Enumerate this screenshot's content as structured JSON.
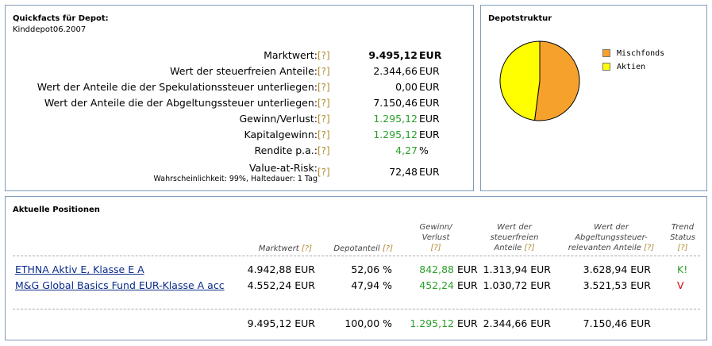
{
  "quickfacts": {
    "title": "Quickfacts für Depot:",
    "depot_name": "Kinddepot06.2007",
    "help": "[?]",
    "rows": [
      {
        "label": "Marktwert:",
        "value": "9.495,12",
        "unit": "EUR",
        "bold": true
      },
      {
        "label": "Wert der steuerfreien Anteile:",
        "value": "2.344,66",
        "unit": "EUR"
      },
      {
        "label": "Wert der Anteile die der Spekulationssteuer unterliegen:",
        "value": "0,00",
        "unit": "EUR"
      },
      {
        "label": "Wert der Anteile die der Abgeltungssteuer unterliegen:",
        "value": "7.150,46",
        "unit": "EUR"
      },
      {
        "label": "Gewinn/Verlust:",
        "value": "1.295,12",
        "unit": "EUR",
        "color": "green"
      },
      {
        "label": "Kapitalgewinn:",
        "value": "1.295,12",
        "unit": "EUR",
        "color": "green"
      },
      {
        "label": "Rendite p.a.:",
        "value": "4,27",
        "unit": "%",
        "color": "green"
      },
      {
        "label": "Value-at-Risk:",
        "sublabel": "Wahrscheinlichkeit: 99%, Haltedauer: 1 Tag",
        "value": "72,48",
        "unit": "EUR"
      }
    ]
  },
  "depotstruktur": {
    "title": "Depotstruktur",
    "legend": [
      {
        "name": "Mischfonds",
        "color": "#f7a12d"
      },
      {
        "name": "Aktien",
        "color": "#ffff00"
      }
    ]
  },
  "chart_data": {
    "type": "pie",
    "categories": [
      "Mischfonds",
      "Aktien"
    ],
    "values": [
      52.06,
      47.94
    ],
    "colors": [
      "#f7a12d",
      "#ffff00"
    ],
    "legend_position": "right"
  },
  "positions": {
    "title": "Aktuelle Positionen",
    "help": "[?]",
    "headers": {
      "marktwert": "Marktwert",
      "depotanteil": "Depotanteil",
      "gewinn_line1": "Gewinn/",
      "gewinn_line2": "Verlust",
      "steuerfrei_line1": "Wert der",
      "steuerfrei_line2": "steuerfreien",
      "steuerfrei_line3": "Anteile",
      "abgeltung_line1": "Wert der",
      "abgeltung_line2": "Abgeltungssteuer-",
      "abgeltung_line3": "relevanten Anteile",
      "trend_line1": "Trend",
      "trend_line2": "Status"
    },
    "rows": [
      {
        "name": "ETHNA Aktiv E, Klasse E A",
        "marktwert": "4.942,88 EUR",
        "depotanteil": "52,06 %",
        "gewinn": "842,88",
        "gewinn_unit": "EUR",
        "steuerfrei": "1.313,94 EUR",
        "abgeltung": "3.628,94 EUR",
        "trend": "K!",
        "trend_color": "green"
      },
      {
        "name": "M&G Global Basics Fund EUR-Klasse A acc",
        "marktwert": "4.552,24 EUR",
        "depotanteil": "47,94 %",
        "gewinn": "452,24",
        "gewinn_unit": "EUR",
        "steuerfrei": "1.030,72 EUR",
        "abgeltung": "3.521,53 EUR",
        "trend": "V",
        "trend_color": "red"
      }
    ],
    "totals": {
      "marktwert": "9.495,12 EUR",
      "depotanteil": "100,00 %",
      "gewinn": "1.295,12",
      "gewinn_unit": "EUR",
      "steuerfrei": "2.344,66 EUR",
      "abgeltung": "7.150,46 EUR"
    }
  }
}
